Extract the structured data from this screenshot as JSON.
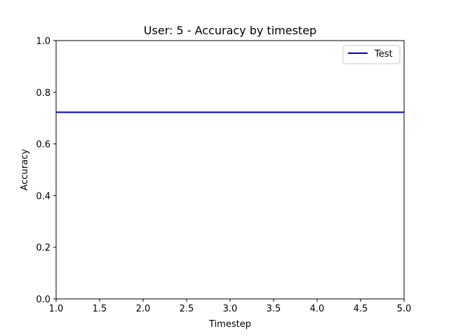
{
  "chart_data": {
    "type": "line",
    "title": "User: 5 - Accuracy by timestep",
    "xlabel": "Timestep",
    "ylabel": "Accuracy",
    "xlim": [
      1.0,
      5.0
    ],
    "ylim": [
      0.0,
      1.0
    ],
    "x_ticks": [
      "1.0",
      "1.5",
      "2.0",
      "2.5",
      "3.0",
      "3.5",
      "4.0",
      "4.5",
      "5.0"
    ],
    "y_ticks": [
      "0.0",
      "0.2",
      "0.4",
      "0.6",
      "0.8",
      "1.0"
    ],
    "grid": false,
    "legend_position": "top-right",
    "series": [
      {
        "name": "Test",
        "color": "#0000cc",
        "x": [
          1.0,
          5.0
        ],
        "y": [
          0.7225,
          0.7225
        ]
      }
    ]
  }
}
